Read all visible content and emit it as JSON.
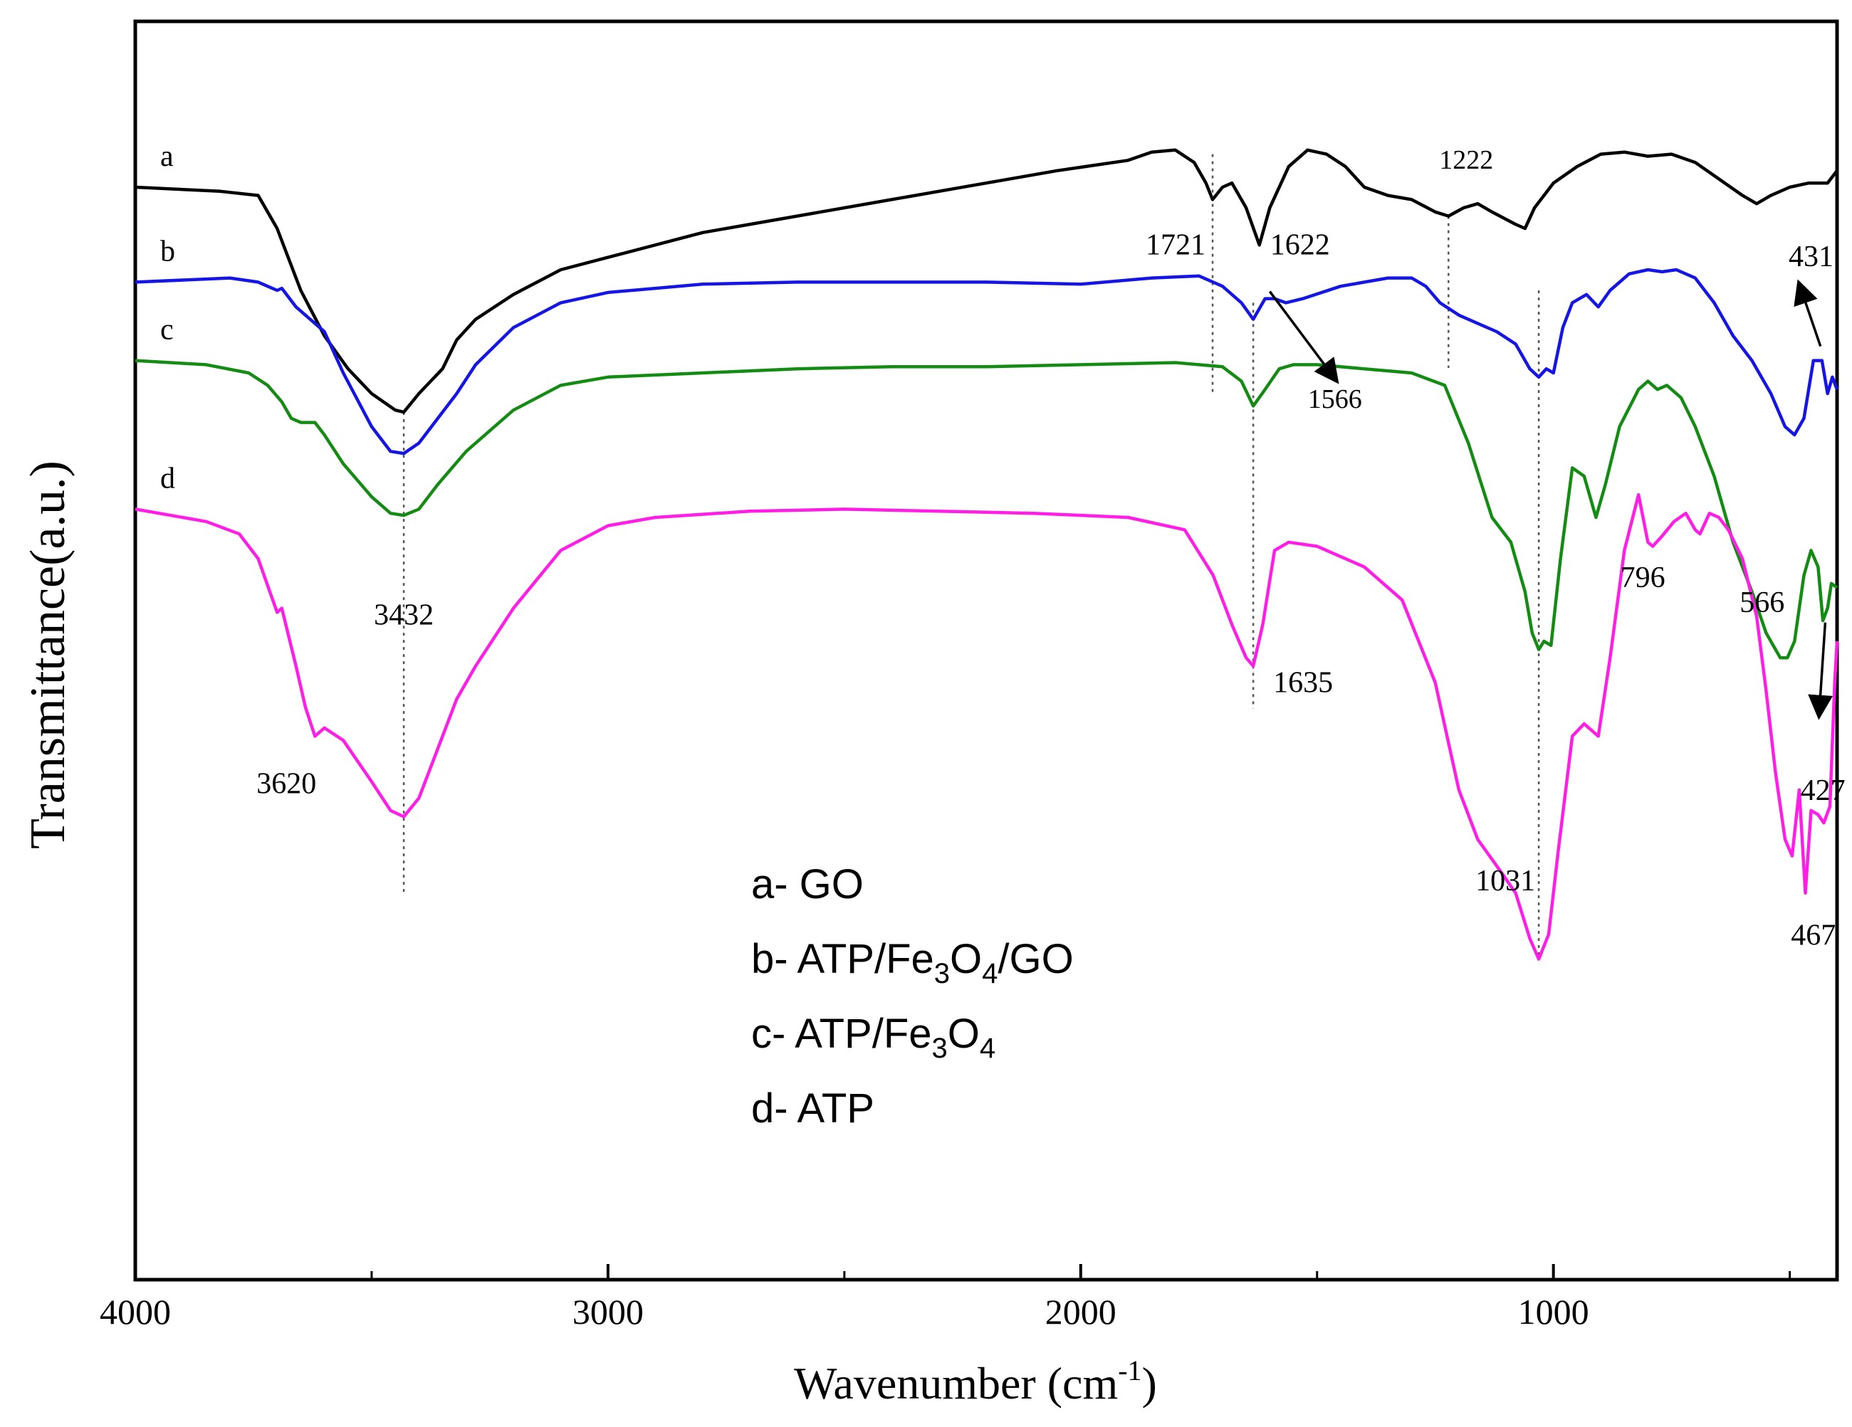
{
  "chart_data": {
    "type": "line",
    "title": "",
    "xlabel": "Wavenumber (cm",
    "xlabel_sup": "-1",
    "xlabel_close": ")",
    "ylabel": "Transmittance(a.u.)",
    "xlim": [
      4000,
      400
    ],
    "xticks": [
      4000,
      3000,
      2000,
      1000
    ],
    "yticks": [],
    "series": [
      {
        "name": "a- GO",
        "curve_letter": "a",
        "color": "#000000",
        "offset": 0,
        "points": [
          [
            4000,
            0.1
          ],
          [
            3820,
            0.11
          ],
          [
            3740,
            0.12
          ],
          [
            3700,
            0.2
          ],
          [
            3650,
            0.35
          ],
          [
            3600,
            0.46
          ],
          [
            3550,
            0.54
          ],
          [
            3500,
            0.6
          ],
          [
            3450,
            0.64
          ],
          [
            3432,
            0.645
          ],
          [
            3400,
            0.6
          ],
          [
            3350,
            0.54
          ],
          [
            3320,
            0.47
          ],
          [
            3280,
            0.42
          ],
          [
            3200,
            0.36
          ],
          [
            3100,
            0.3
          ],
          [
            3000,
            0.27
          ],
          [
            2800,
            0.21
          ],
          [
            2600,
            0.17
          ],
          [
            2400,
            0.13
          ],
          [
            2200,
            0.09
          ],
          [
            2050,
            0.06
          ],
          [
            1900,
            0.035
          ],
          [
            1850,
            0.015
          ],
          [
            1800,
            0.01
          ],
          [
            1760,
            0.04
          ],
          [
            1735,
            0.09
          ],
          [
            1721,
            0.13
          ],
          [
            1700,
            0.1
          ],
          [
            1680,
            0.09
          ],
          [
            1650,
            0.15
          ],
          [
            1622,
            0.24
          ],
          [
            1600,
            0.15
          ],
          [
            1560,
            0.05
          ],
          [
            1520,
            0.01
          ],
          [
            1480,
            0.02
          ],
          [
            1440,
            0.05
          ],
          [
            1400,
            0.1
          ],
          [
            1350,
            0.12
          ],
          [
            1300,
            0.13
          ],
          [
            1250,
            0.16
          ],
          [
            1222,
            0.17
          ],
          [
            1190,
            0.15
          ],
          [
            1160,
            0.14
          ],
          [
            1130,
            0.16
          ],
          [
            1080,
            0.19
          ],
          [
            1060,
            0.2
          ],
          [
            1040,
            0.15
          ],
          [
            1000,
            0.09
          ],
          [
            950,
            0.05
          ],
          [
            900,
            0.02
          ],
          [
            850,
            0.015
          ],
          [
            800,
            0.025
          ],
          [
            750,
            0.02
          ],
          [
            700,
            0.04
          ],
          [
            650,
            0.08
          ],
          [
            600,
            0.12
          ],
          [
            570,
            0.14
          ],
          [
            540,
            0.12
          ],
          [
            500,
            0.1
          ],
          [
            460,
            0.09
          ],
          [
            420,
            0.09
          ],
          [
            400,
            0.06
          ]
        ]
      },
      {
        "name": "b- ATP/Fe3O4/GO",
        "curve_letter": "b",
        "color": "#1515e6",
        "offset": 0.3,
        "points": [
          [
            4000,
            0.03
          ],
          [
            3800,
            0.02
          ],
          [
            3740,
            0.03
          ],
          [
            3700,
            0.05
          ],
          [
            3690,
            0.045
          ],
          [
            3660,
            0.09
          ],
          [
            3620,
            0.13
          ],
          [
            3600,
            0.15
          ],
          [
            3560,
            0.25
          ],
          [
            3500,
            0.38
          ],
          [
            3460,
            0.44
          ],
          [
            3432,
            0.445
          ],
          [
            3400,
            0.42
          ],
          [
            3360,
            0.36
          ],
          [
            3320,
            0.3
          ],
          [
            3280,
            0.23
          ],
          [
            3200,
            0.14
          ],
          [
            3100,
            0.08
          ],
          [
            3000,
            0.055
          ],
          [
            2800,
            0.035
          ],
          [
            2600,
            0.03
          ],
          [
            2400,
            0.03
          ],
          [
            2200,
            0.03
          ],
          [
            2000,
            0.035
          ],
          [
            1850,
            0.02
          ],
          [
            1750,
            0.015
          ],
          [
            1700,
            0.04
          ],
          [
            1660,
            0.08
          ],
          [
            1635,
            0.12
          ],
          [
            1610,
            0.07
          ],
          [
            1590,
            0.07
          ],
          [
            1566,
            0.08
          ],
          [
            1530,
            0.07
          ],
          [
            1450,
            0.04
          ],
          [
            1350,
            0.02
          ],
          [
            1300,
            0.02
          ],
          [
            1270,
            0.04
          ],
          [
            1240,
            0.08
          ],
          [
            1200,
            0.11
          ],
          [
            1160,
            0.13
          ],
          [
            1120,
            0.15
          ],
          [
            1080,
            0.18
          ],
          [
            1050,
            0.24
          ],
          [
            1031,
            0.26
          ],
          [
            1015,
            0.24
          ],
          [
            1000,
            0.25
          ],
          [
            980,
            0.14
          ],
          [
            960,
            0.08
          ],
          [
            930,
            0.06
          ],
          [
            905,
            0.09
          ],
          [
            880,
            0.05
          ],
          [
            840,
            0.01
          ],
          [
            800,
            0.0
          ],
          [
            770,
            0.005
          ],
          [
            740,
            0.0
          ],
          [
            700,
            0.02
          ],
          [
            660,
            0.08
          ],
          [
            620,
            0.16
          ],
          [
            580,
            0.22
          ],
          [
            540,
            0.3
          ],
          [
            510,
            0.38
          ],
          [
            490,
            0.4
          ],
          [
            470,
            0.36
          ],
          [
            450,
            0.22
          ],
          [
            432,
            0.22
          ],
          [
            420,
            0.3
          ],
          [
            410,
            0.26
          ],
          [
            400,
            0.29
          ]
        ]
      },
      {
        "name": "c- ATP/Fe3O4",
        "curve_letter": "c",
        "color": "#148c14",
        "offset": 0.52,
        "points": [
          [
            4000,
            0.0
          ],
          [
            3850,
            0.01
          ],
          [
            3760,
            0.03
          ],
          [
            3720,
            0.06
          ],
          [
            3690,
            0.1
          ],
          [
            3670,
            0.14
          ],
          [
            3650,
            0.15
          ],
          [
            3620,
            0.15
          ],
          [
            3600,
            0.18
          ],
          [
            3560,
            0.25
          ],
          [
            3500,
            0.33
          ],
          [
            3460,
            0.37
          ],
          [
            3432,
            0.375
          ],
          [
            3400,
            0.36
          ],
          [
            3360,
            0.3
          ],
          [
            3300,
            0.22
          ],
          [
            3200,
            0.12
          ],
          [
            3100,
            0.06
          ],
          [
            3000,
            0.04
          ],
          [
            2800,
            0.03
          ],
          [
            2600,
            0.02
          ],
          [
            2400,
            0.015
          ],
          [
            2200,
            0.015
          ],
          [
            2000,
            0.01
          ],
          [
            1800,
            0.005
          ],
          [
            1700,
            0.015
          ],
          [
            1660,
            0.05
          ],
          [
            1635,
            0.11
          ],
          [
            1610,
            0.07
          ],
          [
            1580,
            0.02
          ],
          [
            1550,
            0.01
          ],
          [
            1500,
            0.01
          ],
          [
            1400,
            0.02
          ],
          [
            1300,
            0.03
          ],
          [
            1230,
            0.06
          ],
          [
            1180,
            0.2
          ],
          [
            1130,
            0.38
          ],
          [
            1090,
            0.44
          ],
          [
            1060,
            0.56
          ],
          [
            1045,
            0.66
          ],
          [
            1031,
            0.7
          ],
          [
            1020,
            0.68
          ],
          [
            1005,
            0.69
          ],
          [
            985,
            0.48
          ],
          [
            960,
            0.26
          ],
          [
            935,
            0.28
          ],
          [
            910,
            0.38
          ],
          [
            890,
            0.3
          ],
          [
            860,
            0.16
          ],
          [
            820,
            0.07
          ],
          [
            800,
            0.05
          ],
          [
            780,
            0.07
          ],
          [
            760,
            0.06
          ],
          [
            730,
            0.09
          ],
          [
            700,
            0.16
          ],
          [
            660,
            0.28
          ],
          [
            620,
            0.44
          ],
          [
            580,
            0.56
          ],
          [
            550,
            0.66
          ],
          [
            520,
            0.72
          ],
          [
            505,
            0.72
          ],
          [
            490,
            0.68
          ],
          [
            470,
            0.52
          ],
          [
            455,
            0.46
          ],
          [
            440,
            0.5
          ],
          [
            430,
            0.63
          ],
          [
            420,
            0.6
          ],
          [
            412,
            0.54
          ],
          [
            400,
            0.55
          ]
        ]
      },
      {
        "name": "d- ATP",
        "curve_letter": "d",
        "color": "#ff1ee6",
        "offset": 0.88,
        "points": [
          [
            4000,
            0.0
          ],
          [
            3850,
            0.03
          ],
          [
            3780,
            0.06
          ],
          [
            3740,
            0.12
          ],
          [
            3700,
            0.25
          ],
          [
            3690,
            0.24
          ],
          [
            3660,
            0.38
          ],
          [
            3640,
            0.48
          ],
          [
            3620,
            0.55
          ],
          [
            3600,
            0.53
          ],
          [
            3560,
            0.56
          ],
          [
            3500,
            0.66
          ],
          [
            3460,
            0.73
          ],
          [
            3432,
            0.745
          ],
          [
            3400,
            0.7
          ],
          [
            3360,
            0.58
          ],
          [
            3320,
            0.46
          ],
          [
            3280,
            0.38
          ],
          [
            3200,
            0.24
          ],
          [
            3100,
            0.1
          ],
          [
            3000,
            0.04
          ],
          [
            2900,
            0.02
          ],
          [
            2700,
            0.005
          ],
          [
            2500,
            0.0
          ],
          [
            2300,
            0.005
          ],
          [
            2100,
            0.01
          ],
          [
            1900,
            0.02
          ],
          [
            1780,
            0.05
          ],
          [
            1720,
            0.16
          ],
          [
            1680,
            0.28
          ],
          [
            1650,
            0.36
          ],
          [
            1635,
            0.38
          ],
          [
            1615,
            0.28
          ],
          [
            1590,
            0.1
          ],
          [
            1560,
            0.08
          ],
          [
            1500,
            0.09
          ],
          [
            1400,
            0.14
          ],
          [
            1320,
            0.22
          ],
          [
            1250,
            0.42
          ],
          [
            1200,
            0.68
          ],
          [
            1160,
            0.8
          ],
          [
            1110,
            0.88
          ],
          [
            1080,
            0.93
          ],
          [
            1050,
            1.04
          ],
          [
            1031,
            1.09
          ],
          [
            1010,
            1.03
          ],
          [
            990,
            0.83
          ],
          [
            960,
            0.55
          ],
          [
            935,
            0.52
          ],
          [
            905,
            0.55
          ],
          [
            880,
            0.36
          ],
          [
            850,
            0.1
          ],
          [
            820,
            -0.035
          ],
          [
            800,
            0.08
          ],
          [
            790,
            0.09
          ],
          [
            770,
            0.065
          ],
          [
            745,
            0.03
          ],
          [
            720,
            0.01
          ],
          [
            700,
            0.05
          ],
          [
            690,
            0.06
          ],
          [
            670,
            0.01
          ],
          [
            650,
            0.02
          ],
          [
            630,
            0.05
          ],
          [
            600,
            0.12
          ],
          [
            570,
            0.26
          ],
          [
            550,
            0.44
          ],
          [
            530,
            0.64
          ],
          [
            510,
            0.8
          ],
          [
            495,
            0.84
          ],
          [
            480,
            0.68
          ],
          [
            467,
            0.93
          ],
          [
            455,
            0.73
          ],
          [
            440,
            0.74
          ],
          [
            428,
            0.76
          ],
          [
            415,
            0.72
          ],
          [
            405,
            0.42
          ],
          [
            400,
            0.32
          ]
        ]
      }
    ],
    "peak_labels": [
      {
        "text": "3432",
        "x": 3432
      },
      {
        "text": "3620",
        "x": 3620
      },
      {
        "text": "1721",
        "x": 1721
      },
      {
        "text": "1622",
        "x": 1622
      },
      {
        "text": "1222",
        "x": 1222
      },
      {
        "text": "1566",
        "x": 1566
      },
      {
        "text": "1635",
        "x": 1635
      },
      {
        "text": "1031",
        "x": 1031
      },
      {
        "text": "796",
        "x": 796
      },
      {
        "text": "566",
        "x": 566
      },
      {
        "text": "431",
        "x": 431
      },
      {
        "text": "427",
        "x": 427
      },
      {
        "text": "467",
        "x": 467
      }
    ],
    "legend": {
      "placement": "lower-center",
      "entries": [
        {
          "prefix": "a- GO"
        },
        {
          "prefix": "b- ATP/Fe",
          "sub1": "3",
          "mid": "O",
          "sub2": "4",
          "suffix": "/GO"
        },
        {
          "prefix": "c- ATP/Fe",
          "sub1": "3",
          "mid": "O",
          "sub2": "4",
          "suffix": ""
        },
        {
          "prefix": "d- ATP"
        }
      ]
    }
  }
}
